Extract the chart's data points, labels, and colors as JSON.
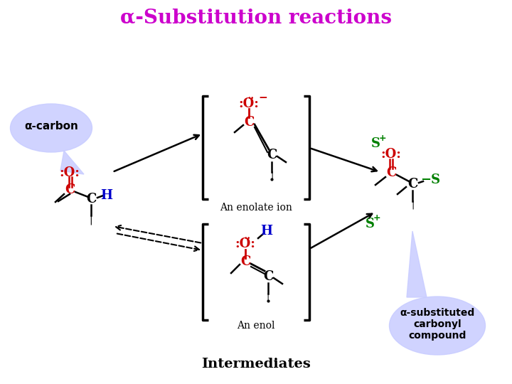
{
  "title": "α-Substitution reactions",
  "title_color": "#cc00cc",
  "title_fontsize": 20,
  "bg_color": "#ffffff",
  "alpha_carbon_label": "α-carbon",
  "alpha_sub_label": "α-substituted\ncarbonyl\ncompound",
  "intermediates_label": "Intermediates",
  "enolate_label": "An enolate ion",
  "enol_label": "An enol",
  "s_plus_color": "#008000",
  "red_color": "#cc0000",
  "blue_color": "#0000cc",
  "black_color": "#000000",
  "bubble_color": "#c8ccff",
  "bubble_alpha": 0.85
}
